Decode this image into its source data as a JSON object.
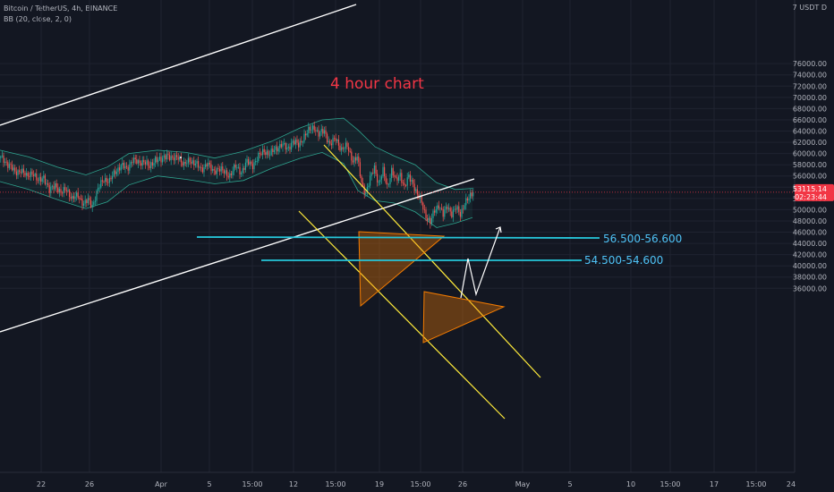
{
  "header": {
    "symbol": "Bitcoin / TetherUS, 4h, BINANCE",
    "indicator": "BB (20, close, 2, 0)"
  },
  "colors": {
    "background": "#131722",
    "up": "#26a69a",
    "down": "#ef5350",
    "bb": "#2ea58f",
    "trendline": "#ffffff",
    "channel": "#ffeb3b",
    "triangle_fill": "#f57c00",
    "level": "#26c6da",
    "title": "#f23645",
    "price_badge": "#f23645"
  },
  "chart_data": {
    "type": "candlestick",
    "title": "4 hour chart",
    "y_axis": {
      "unit": "USDT",
      "ticks": [
        36000,
        38000,
        40000,
        42000,
        44000,
        46000,
        48000,
        50000,
        52000,
        54000,
        56000,
        58000,
        60000,
        62000,
        64000,
        66000,
        68000,
        70000,
        72000,
        74000,
        76000
      ],
      "range": [
        35000,
        77500
      ],
      "corner_label": "USDT"
    },
    "x_axis": {
      "tick_labels": [
        "22",
        "26",
        "Apr",
        "5",
        "15:00",
        "12",
        "15:00",
        "19",
        "15:00",
        "26",
        "May",
        "5",
        "10",
        "15:00",
        "17",
        "15:00",
        "24"
      ]
    },
    "last_price": {
      "value": 53115.14,
      "label": "53115.14",
      "countdown": "02:23:44"
    },
    "levels": [
      {
        "label": "56.500-56.600",
        "value": 56600
      },
      {
        "label": "54.500-54.600",
        "value": 54600
      }
    ],
    "price_path": [
      [
        0,
        59200
      ],
      [
        6,
        58000
      ],
      [
        10,
        56500
      ],
      [
        14,
        57200
      ],
      [
        18,
        55800
      ],
      [
        22,
        56800
      ],
      [
        26,
        54900
      ],
      [
        30,
        56000
      ],
      [
        34,
        53200
      ],
      [
        38,
        54600
      ],
      [
        42,
        52800
      ],
      [
        46,
        53800
      ],
      [
        50,
        51800
      ],
      [
        54,
        52600
      ],
      [
        58,
        51000
      ],
      [
        61,
        51600
      ],
      [
        64,
        50800
      ],
      [
        68,
        53600
      ],
      [
        72,
        55600
      ],
      [
        76,
        55000
      ],
      [
        80,
        56800
      ],
      [
        84,
        57900
      ],
      [
        88,
        57200
      ],
      [
        92,
        59000
      ],
      [
        96,
        58200
      ],
      [
        100,
        58800
      ],
      [
        104,
        57400
      ],
      [
        108,
        59200
      ],
      [
        112,
        58600
      ],
      [
        116,
        60000
      ],
      [
        120,
        58800
      ],
      [
        124,
        59600
      ],
      [
        128,
        57800
      ],
      [
        132,
        58900
      ],
      [
        136,
        58200
      ],
      [
        140,
        57100
      ],
      [
        144,
        58300
      ],
      [
        148,
        56800
      ],
      [
        152,
        57400
      ],
      [
        156,
        56600
      ],
      [
        160,
        56200
      ],
      [
        164,
        57600
      ],
      [
        168,
        56800
      ],
      [
        172,
        58400
      ],
      [
        176,
        58000
      ],
      [
        180,
        59400
      ],
      [
        184,
        60600
      ],
      [
        188,
        59800
      ],
      [
        192,
        60900
      ],
      [
        196,
        61600
      ],
      [
        200,
        60800
      ],
      [
        204,
        62200
      ],
      [
        208,
        61400
      ],
      [
        212,
        63200
      ],
      [
        216,
        64200
      ],
      [
        219,
        64800
      ],
      [
        222,
        63400
      ],
      [
        226,
        64000
      ],
      [
        230,
        61600
      ],
      [
        234,
        62600
      ],
      [
        238,
        60800
      ],
      [
        242,
        61200
      ],
      [
        246,
        58800
      ],
      [
        249,
        59200
      ],
      [
        252,
        54800
      ],
      [
        255,
        53000
      ],
      [
        258,
        55400
      ],
      [
        261,
        57600
      ],
      [
        264,
        54600
      ],
      [
        267,
        56800
      ],
      [
        270,
        54200
      ],
      [
        273,
        57000
      ],
      [
        276,
        55000
      ],
      [
        279,
        56400
      ],
      [
        282,
        54000
      ],
      [
        285,
        55800
      ],
      [
        288,
        54800
      ],
      [
        291,
        52600
      ],
      [
        294,
        51200
      ],
      [
        297,
        49000
      ],
      [
        300,
        47600
      ],
      [
        303,
        49800
      ],
      [
        306,
        51000
      ],
      [
        309,
        49000
      ],
      [
        312,
        50600
      ],
      [
        315,
        49400
      ],
      [
        318,
        50200
      ],
      [
        321,
        49200
      ],
      [
        324,
        51300
      ],
      [
        327,
        51900
      ],
      [
        330,
        53115
      ]
    ],
    "bb_upper": [
      [
        0,
        60600
      ],
      [
        20,
        59400
      ],
      [
        40,
        57600
      ],
      [
        60,
        56200
      ],
      [
        75,
        57600
      ],
      [
        90,
        60000
      ],
      [
        110,
        60600
      ],
      [
        130,
        60200
      ],
      [
        150,
        59200
      ],
      [
        170,
        60400
      ],
      [
        190,
        62200
      ],
      [
        210,
        64600
      ],
      [
        225,
        66000
      ],
      [
        240,
        66300
      ],
      [
        250,
        64200
      ],
      [
        262,
        61200
      ],
      [
        275,
        59600
      ],
      [
        290,
        58000
      ],
      [
        305,
        54800
      ],
      [
        318,
        53600
      ],
      [
        330,
        53800
      ]
    ],
    "bb_lower": [
      [
        0,
        55000
      ],
      [
        20,
        53600
      ],
      [
        40,
        51800
      ],
      [
        60,
        50200
      ],
      [
        75,
        51400
      ],
      [
        90,
        54400
      ],
      [
        110,
        56000
      ],
      [
        130,
        55400
      ],
      [
        150,
        54600
      ],
      [
        170,
        55200
      ],
      [
        190,
        57400
      ],
      [
        210,
        59200
      ],
      [
        225,
        60200
      ],
      [
        240,
        58200
      ],
      [
        250,
        53400
      ],
      [
        262,
        51600
      ],
      [
        275,
        51200
      ],
      [
        290,
        49600
      ],
      [
        305,
        46800
      ],
      [
        318,
        47600
      ],
      [
        330,
        48600
      ]
    ]
  }
}
